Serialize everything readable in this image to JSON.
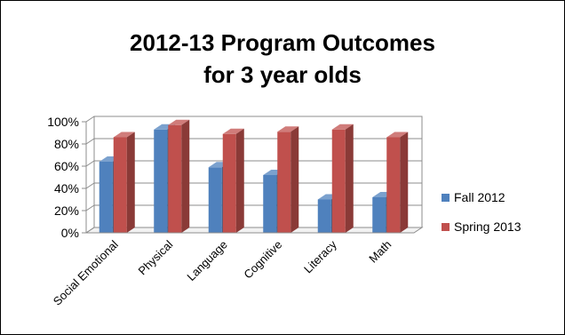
{
  "chart_data": {
    "type": "bar",
    "title": [
      "2012-13 Program Outcomes",
      "for 3 year olds"
    ],
    "categories": [
      "Social Emotional",
      "Physical",
      "Language",
      "Cognitive",
      "Literacy",
      "Math"
    ],
    "series": [
      {
        "name": "Fall 2012",
        "values": [
          64,
          93,
          59,
          52,
          30,
          32
        ],
        "color": "#4F81BD"
      },
      {
        "name": "Spring 2013",
        "values": [
          86,
          97,
          89,
          91,
          93,
          86
        ],
        "color": "#C0504D"
      }
    ],
    "yticks": [
      "0%",
      "20%",
      "40%",
      "60%",
      "80%",
      "100%"
    ],
    "ylim": [
      0,
      100
    ],
    "grid": true,
    "legend_position": "right",
    "style": "3d-clustered-column"
  }
}
